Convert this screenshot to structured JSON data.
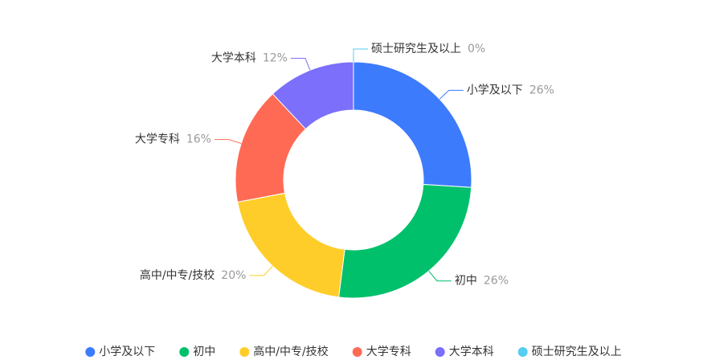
{
  "chart_data": {
    "type": "pie",
    "categories": [
      "小学及以下",
      "初中",
      "高中/中专/技校",
      "大学专科",
      "大学本科",
      "硕士研究生及以上"
    ],
    "values": [
      26,
      26,
      20,
      16,
      12,
      0
    ],
    "value_labels": [
      "26%",
      "26%",
      "20%",
      "16%",
      "12%",
      "0%"
    ],
    "colors": [
      "#3d7bfd",
      "#00c06b",
      "#ffcd29",
      "#ff6a55",
      "#7b6ffb",
      "#56cdf1"
    ],
    "donut": true,
    "legend": "bottom"
  }
}
